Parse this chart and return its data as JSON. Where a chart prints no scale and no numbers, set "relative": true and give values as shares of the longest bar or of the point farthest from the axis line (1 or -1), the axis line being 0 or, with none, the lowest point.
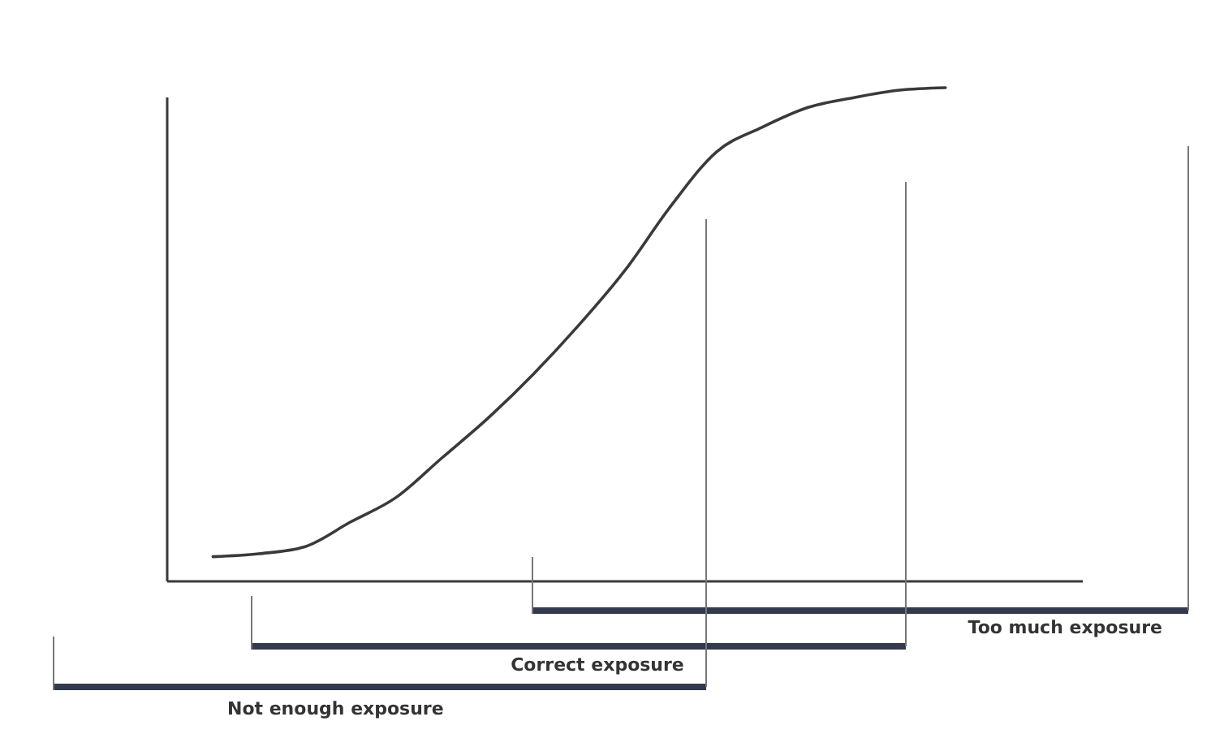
{
  "chart_data": {
    "type": "line",
    "relative": true,
    "categories": [
      null,
      null,
      null,
      null,
      null,
      null,
      null,
      null,
      null,
      null,
      null,
      null,
      null,
      null,
      null,
      null,
      null,
      null,
      null,
      null,
      null
    ],
    "series": [
      {
        "color": "#3a3a3a",
        "values": [
          null,
          0.05,
          0.056,
          0.07,
          0.12,
          0.17,
          0.25,
          0.33,
          0.42,
          0.52,
          0.63,
          0.76,
          0.87,
          0.92,
          0.96,
          0.98,
          0.995,
          1,
          null,
          null,
          null
        ]
      }
    ],
    "annotations": [
      "Too much exposure",
      "Correct exposure",
      "Not enough exposure"
    ]
  }
}
